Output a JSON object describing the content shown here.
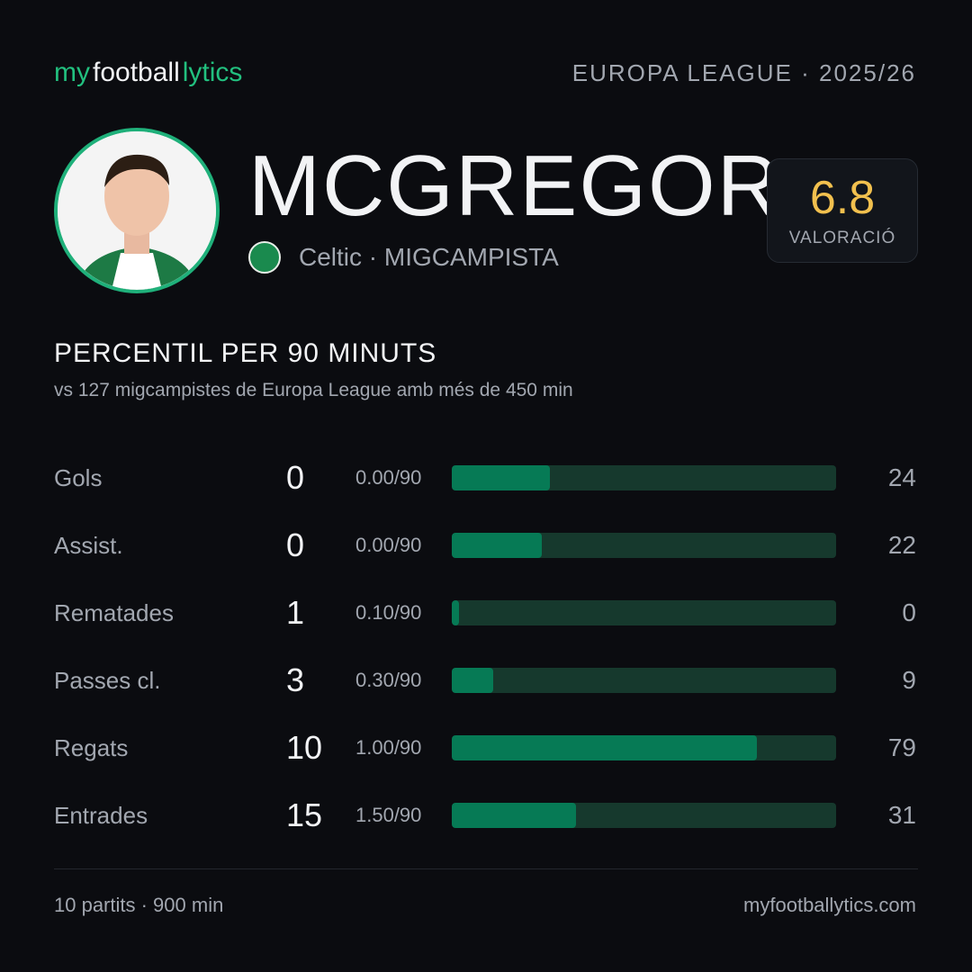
{
  "header": {
    "brand": [
      "my",
      "football",
      "lytics"
    ],
    "competition": "EUROPA LEAGUE · 2025/26"
  },
  "player": {
    "name": "MCGREGOR",
    "team_line": "Celtic · MIGCAMPISTA",
    "rating": 6.8,
    "rating_label": "VALORACIÓ"
  },
  "section": {
    "title": "PERCENTIL PER 90 MINUTS",
    "subtitle": "vs 127 migcampistes de Europa League amb més de 450 min"
  },
  "xlim": [
    0,
    100
  ],
  "stats": [
    {
      "label": "Gols",
      "total": 0,
      "per90": "0.00/90",
      "percentile": 24
    },
    {
      "label": "Assist.",
      "total": 0,
      "per90": "0.00/90",
      "percentile": 22
    },
    {
      "label": "Rematades",
      "total": 1,
      "per90": "0.10/90",
      "percentile": 0
    },
    {
      "label": "Passes cl.",
      "total": 3,
      "per90": "0.30/90",
      "percentile": 9
    },
    {
      "label": "Regats",
      "total": 10,
      "per90": "1.00/90",
      "percentile": 79
    },
    {
      "label": "Entrades",
      "total": 15,
      "per90": "1.50/90",
      "percentile": 31
    }
  ],
  "footer": {
    "summary": "10 partits · 900 min",
    "site": "myfootballytics.com"
  }
}
